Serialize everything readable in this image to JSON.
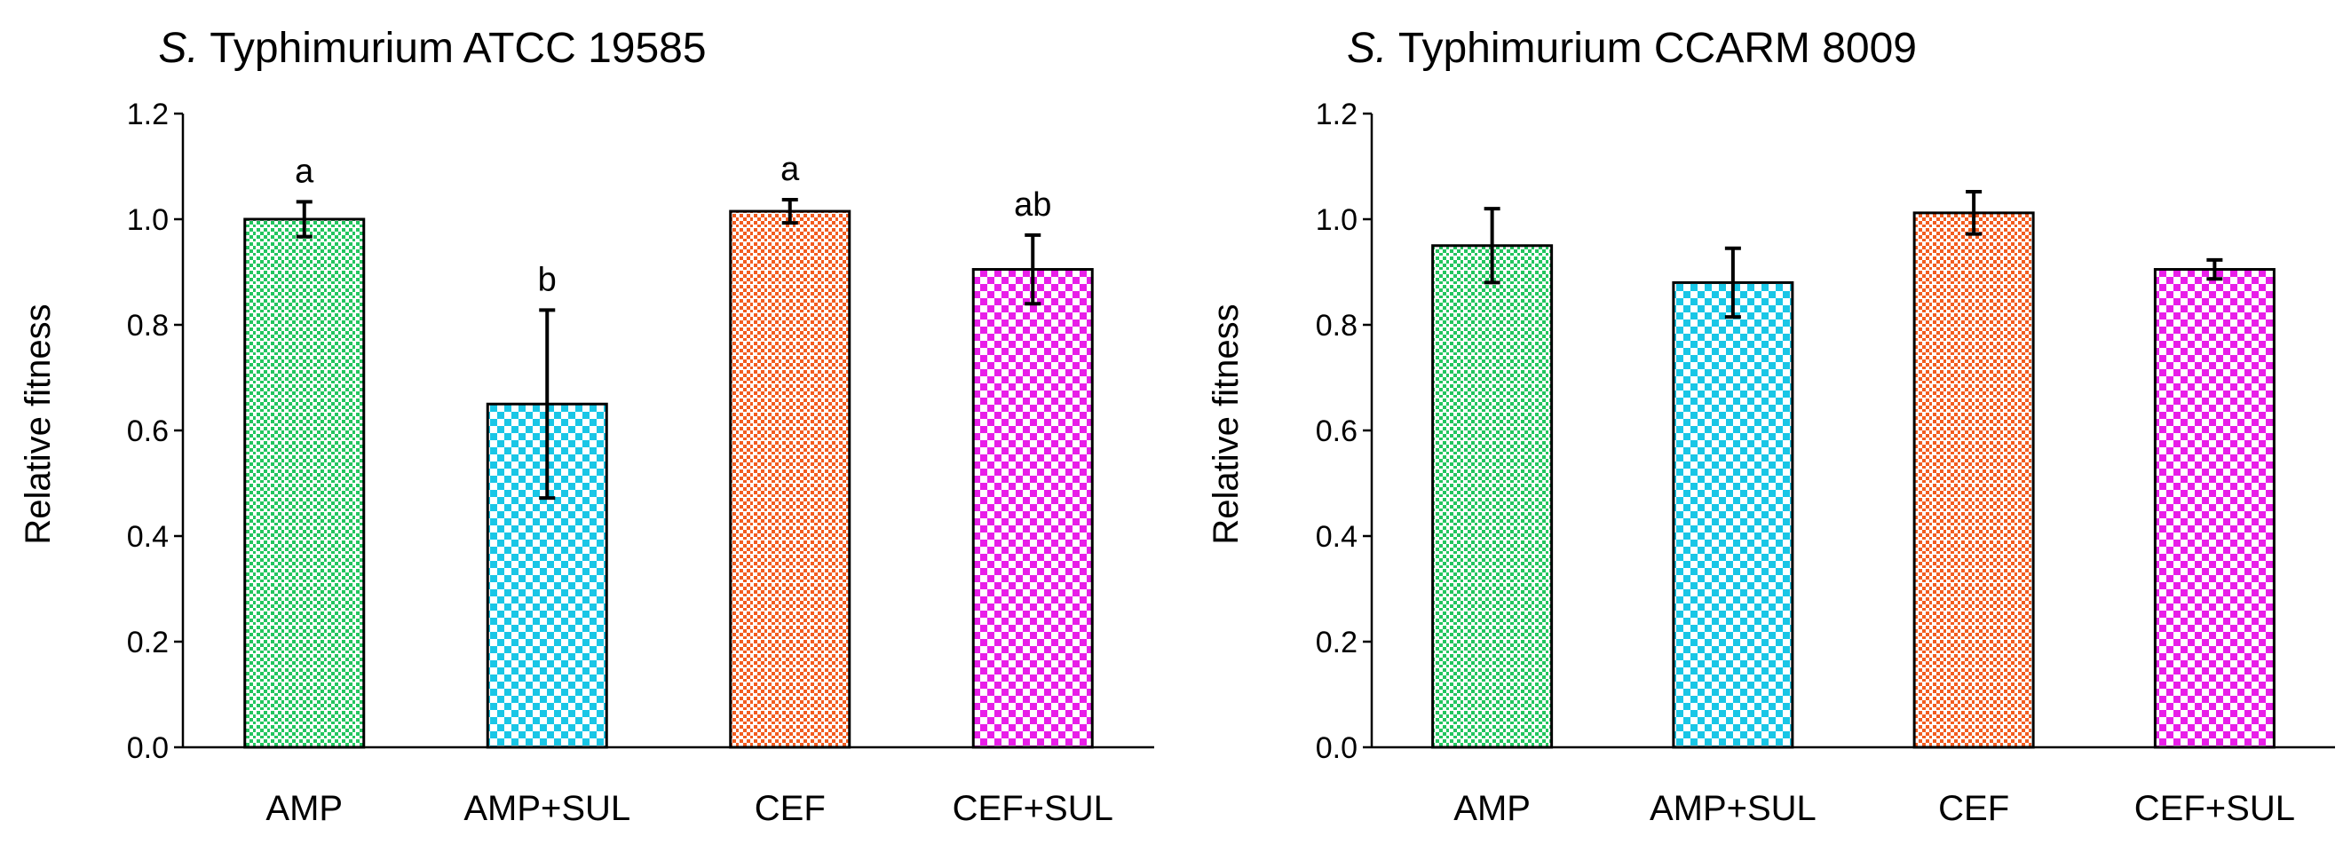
{
  "chart_data": [
    {
      "type": "bar",
      "title": "S. Typhimurium ATCC 19585",
      "title_italic_part": "S.",
      "title_rest": " Typhimurium ATCC 19585",
      "ylabel": "Relative fitness",
      "xlabel": "",
      "ylim": [
        0,
        1.2
      ],
      "yticks": [
        "0.0",
        "0.2",
        "0.4",
        "0.6",
        "0.8",
        "1.0",
        "1.2"
      ],
      "categories": [
        "AMP",
        "AMP+SUL",
        "CEF",
        "CEF+SUL"
      ],
      "values": [
        1.0,
        0.65,
        1.015,
        0.905
      ],
      "errors": [
        0.033,
        0.178,
        0.022,
        0.065
      ],
      "labels": [
        "a",
        "b",
        "a",
        "ab"
      ],
      "colors": [
        "#22c55e",
        "#19c6e6",
        "#f25c1f",
        "#e81ee8"
      ],
      "patterns": [
        "dots",
        "checker",
        "dots",
        "checker"
      ],
      "grid": false
    },
    {
      "type": "bar",
      "title": "S. Typhimurium CCARM 8009",
      "title_italic_part": "S.",
      "title_rest": " Typhimurium CCARM 8009",
      "ylabel": "Relative fitness",
      "xlabel": "",
      "ylim": [
        0,
        1.2
      ],
      "yticks": [
        "0.0",
        "0.2",
        "0.4",
        "0.6",
        "0.8",
        "1.0",
        "1.2"
      ],
      "categories": [
        "AMP",
        "AMP+SUL",
        "CEF",
        "CEF+SUL"
      ],
      "values": [
        0.95,
        0.88,
        1.012,
        0.905
      ],
      "errors": [
        0.07,
        0.065,
        0.04,
        0.018
      ],
      "labels": [
        "",
        "",
        "",
        ""
      ],
      "colors": [
        "#22c55e",
        "#19c6e6",
        "#f25c1f",
        "#e81ee8"
      ],
      "patterns": [
        "dots",
        "checker",
        "dots",
        "checker"
      ],
      "grid": false
    }
  ]
}
